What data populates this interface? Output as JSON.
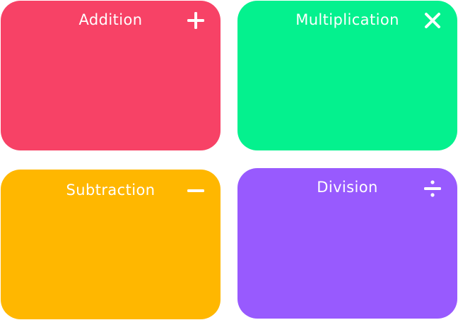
{
  "cards": {
    "addition": {
      "label": "Addition",
      "color": "#f74266",
      "icon": "plus-icon"
    },
    "multiplication": {
      "label": "Multiplication",
      "color": "#04f18e",
      "icon": "times-icon"
    },
    "subtraction": {
      "label": "Subtraction",
      "color": "#ffb700",
      "icon": "minus-icon"
    },
    "division": {
      "label": "Division",
      "color": "#985afe",
      "icon": "divide-icon"
    }
  }
}
